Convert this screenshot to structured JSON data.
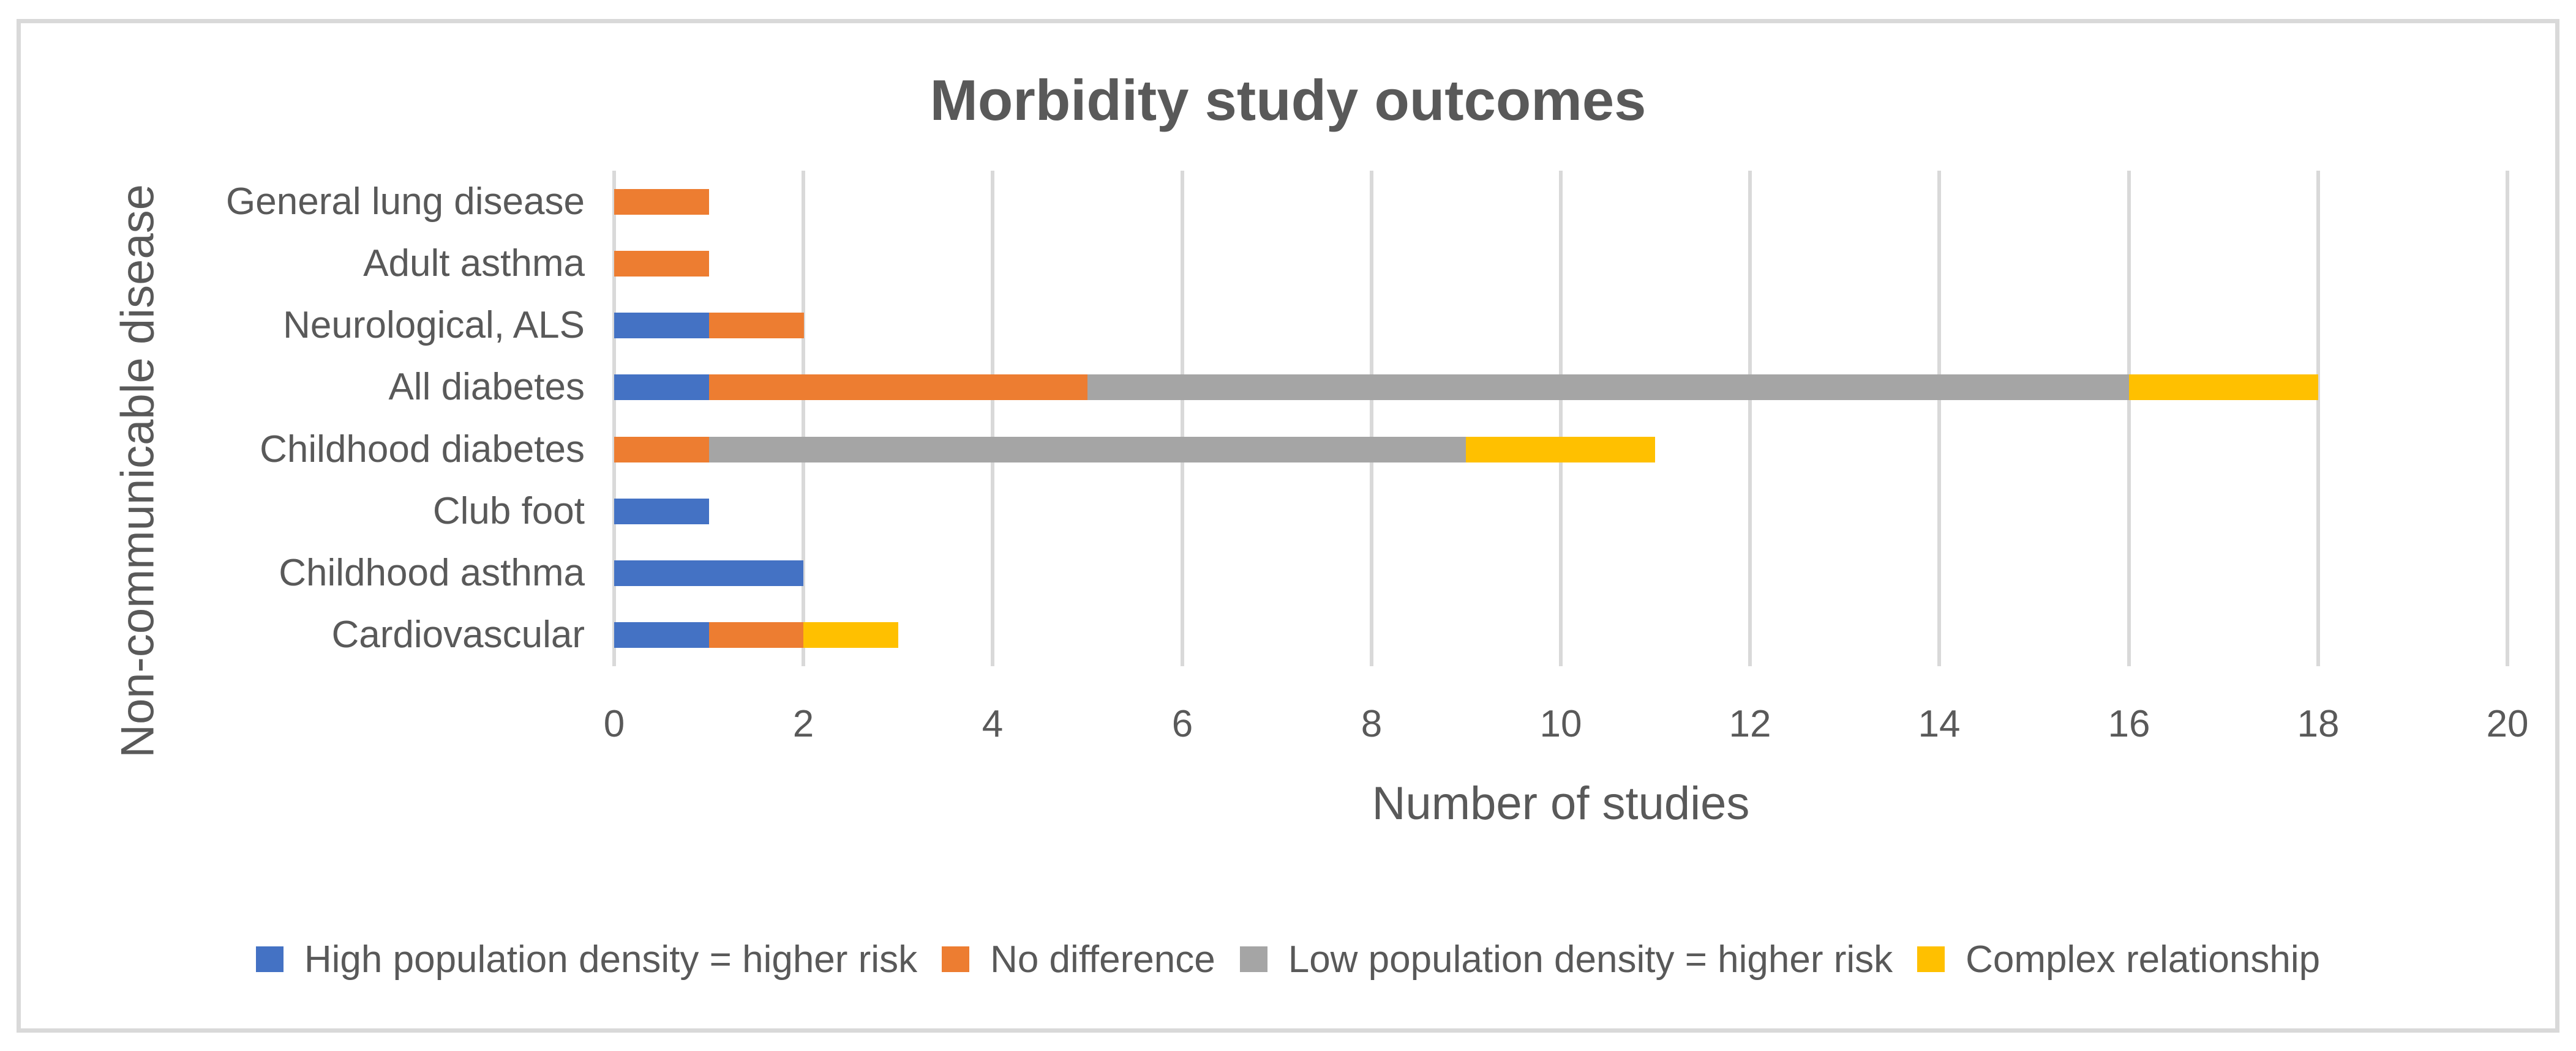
{
  "chart_data": {
    "type": "bar",
    "orientation": "horizontal",
    "stacked": true,
    "title": "Morbidity study outcomes",
    "xlabel": "Number of studies",
    "ylabel": "Non-communicable disease",
    "xlim": [
      0,
      20
    ],
    "xticks": [
      0,
      2,
      4,
      6,
      8,
      10,
      12,
      14,
      16,
      18,
      20
    ],
    "grid": true,
    "legend_position": "bottom",
    "categories": [
      "General lung disease",
      "Adult asthma",
      "Neurological, ALS",
      "All diabetes",
      "Childhood diabetes",
      "Club foot",
      "Childhood asthma",
      "Cardiovascular"
    ],
    "series": [
      {
        "name": "High population density = higher risk",
        "color": "#4472C4",
        "values": [
          0,
          0,
          1,
          1,
          0,
          1,
          2,
          1
        ]
      },
      {
        "name": "No difference",
        "color": "#ED7D31",
        "values": [
          1,
          1,
          1,
          4,
          1,
          0,
          0,
          1
        ]
      },
      {
        "name": "Low population density = higher risk",
        "color": "#A5A5A5",
        "values": [
          0,
          0,
          0,
          11,
          8,
          0,
          0,
          0
        ]
      },
      {
        "name": "Complex relationship",
        "color": "#FFC000",
        "values": [
          0,
          0,
          0,
          2,
          2,
          0,
          0,
          1
        ]
      }
    ]
  },
  "colors": {
    "background": "#FFFFFF",
    "frame_border": "#D9D9D9",
    "gridline": "#D9D9D9",
    "text": "#595959"
  }
}
